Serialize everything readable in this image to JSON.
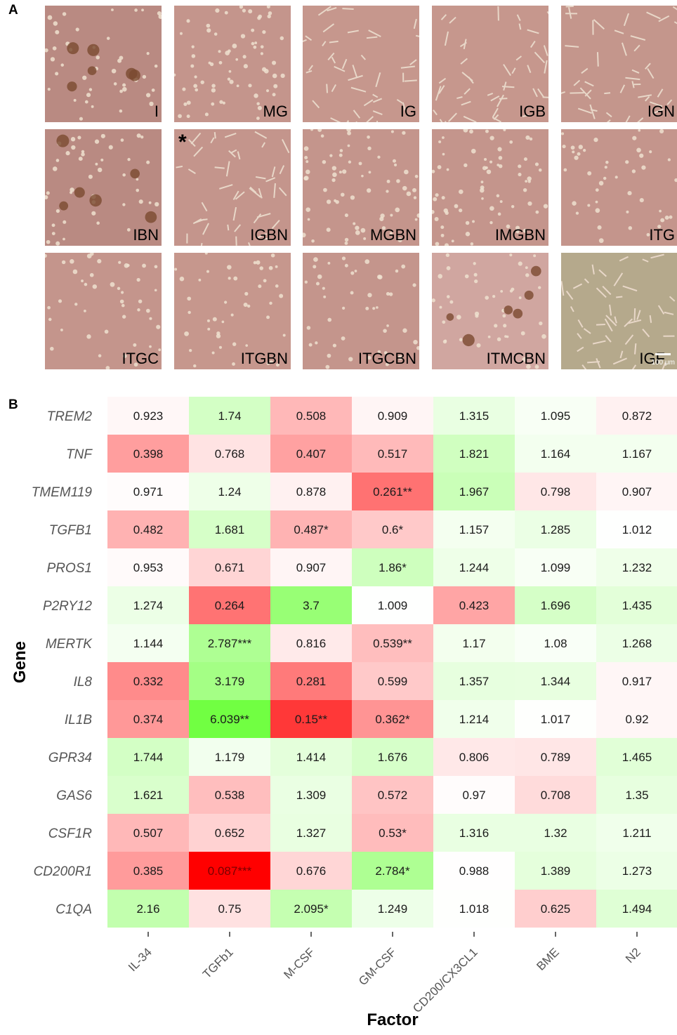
{
  "panel_a": {
    "label": "A",
    "scale_bar_text": "100 μm",
    "asterisk": "*",
    "images": [
      {
        "label": "I",
        "tone": "#b98a82",
        "cells": "clusters"
      },
      {
        "label": "MG",
        "tone": "#c4958c",
        "cells": "dense"
      },
      {
        "label": "IG",
        "tone": "#c6978d",
        "cells": "spindle"
      },
      {
        "label": "IGB",
        "tone": "#c6978d",
        "cells": "spindle"
      },
      {
        "label": "IGN",
        "tone": "#c4968c",
        "cells": "spindle"
      },
      {
        "label": "IBN",
        "tone": "#b98a82",
        "cells": "clusters"
      },
      {
        "label": "IGBN",
        "tone": "#c4958c",
        "cells": "spindle"
      },
      {
        "label": "MGBN",
        "tone": "#c4958c",
        "cells": "dense"
      },
      {
        "label": "IMGBN",
        "tone": "#c4958c",
        "cells": "dense"
      },
      {
        "label": "ITG",
        "tone": "#c4958c",
        "cells": "round"
      },
      {
        "label": "ITGC",
        "tone": "#c4958c",
        "cells": "round"
      },
      {
        "label": "ITGBN",
        "tone": "#c6978d",
        "cells": "round"
      },
      {
        "label": "ITGCBN",
        "tone": "#c4958c",
        "cells": "round"
      },
      {
        "label": "ITMCBN",
        "tone": "#d0a6a0",
        "cells": "clusters"
      },
      {
        "label": "IGF",
        "tone": "#b5a98c",
        "cells": "spindle"
      }
    ]
  },
  "panel_b": {
    "label": "B"
  },
  "chart_data": {
    "type": "heatmap",
    "xlabel": "Factor",
    "ylabel": "Gene",
    "x": [
      "IL-34",
      "TGFb1",
      "M-CSF",
      "GM-CSF",
      "CD200/CX3CL1",
      "BME",
      "N2"
    ],
    "y": [
      "TREM2",
      "TNF",
      "TMEM119",
      "TGFB1",
      "PROS1",
      "P2RY12",
      "MERTK",
      "IL8",
      "IL1B",
      "GPR34",
      "GAS6",
      "CSF1R",
      "CD200R1",
      "C1QA"
    ],
    "colors": {
      "low": "#ff0000",
      "mid": "#ffffff",
      "high": "#66ff33"
    },
    "values": [
      [
        0.923,
        1.74,
        0.508,
        0.909,
        1.315,
        1.095,
        0.872
      ],
      [
        0.398,
        0.768,
        0.407,
        0.517,
        1.821,
        1.164,
        1.167
      ],
      [
        0.971,
        1.24,
        0.878,
        0.261,
        1.967,
        0.798,
        0.907
      ],
      [
        0.482,
        1.681,
        0.487,
        0.6,
        1.157,
        1.285,
        1.012
      ],
      [
        0.953,
        0.671,
        0.907,
        1.86,
        1.244,
        1.099,
        1.232
      ],
      [
        1.274,
        0.264,
        3.7,
        1.009,
        0.423,
        1.696,
        1.435
      ],
      [
        1.144,
        2.787,
        0.816,
        0.539,
        1.17,
        1.08,
        1.268
      ],
      [
        0.332,
        3.179,
        0.281,
        0.599,
        1.357,
        1.344,
        0.917
      ],
      [
        0.374,
        6.039,
        0.15,
        0.362,
        1.214,
        1.017,
        0.92
      ],
      [
        1.744,
        1.179,
        1.414,
        1.676,
        0.806,
        0.789,
        1.465
      ],
      [
        1.621,
        0.538,
        1.309,
        0.572,
        0.97,
        0.708,
        1.35
      ],
      [
        0.507,
        0.652,
        1.327,
        0.53,
        1.316,
        1.32,
        1.211
      ],
      [
        0.385,
        0.087,
        0.676,
        2.784,
        0.988,
        1.389,
        1.273
      ],
      [
        2.16,
        0.75,
        2.095,
        1.249,
        1.018,
        0.625,
        1.494
      ]
    ],
    "labels": [
      [
        "0.923",
        "1.74",
        "0.508",
        "0.909",
        "1.315",
        "1.095",
        "0.872"
      ],
      [
        "0.398",
        "0.768",
        "0.407",
        "0.517",
        "1.821",
        "1.164",
        "1.167"
      ],
      [
        "0.971",
        "1.24",
        "0.878",
        "0.261**",
        "1.967",
        "0.798",
        "0.907"
      ],
      [
        "0.482",
        "1.681",
        "0.487*",
        "0.6*",
        "1.157",
        "1.285",
        "1.012"
      ],
      [
        "0.953",
        "0.671",
        "0.907",
        "1.86*",
        "1.244",
        "1.099",
        "1.232"
      ],
      [
        "1.274",
        "0.264",
        "3.7",
        "1.009",
        "0.423",
        "1.696",
        "1.435"
      ],
      [
        "1.144",
        "2.787***",
        "0.816",
        "0.539**",
        "1.17",
        "1.08",
        "1.268"
      ],
      [
        "0.332",
        "3.179",
        "0.281",
        "0.599",
        "1.357",
        "1.344",
        "0.917"
      ],
      [
        "0.374",
        "6.039**",
        "0.15**",
        "0.362*",
        "1.214",
        "1.017",
        "0.92"
      ],
      [
        "1.744",
        "1.179",
        "1.414",
        "1.676",
        "0.806",
        "0.789",
        "1.465"
      ],
      [
        "1.621",
        "0.538",
        "1.309",
        "0.572",
        "0.97",
        "0.708",
        "1.35"
      ],
      [
        "0.507",
        "0.652",
        "1.327",
        "0.53*",
        "1.316",
        "1.32",
        "1.211"
      ],
      [
        "0.385",
        "0.087***",
        "0.676",
        "2.784*",
        "0.988",
        "1.389",
        "1.273"
      ],
      [
        "2.16",
        "0.75",
        "2.095*",
        "1.249",
        "1.018",
        "0.625",
        "1.494"
      ]
    ]
  }
}
